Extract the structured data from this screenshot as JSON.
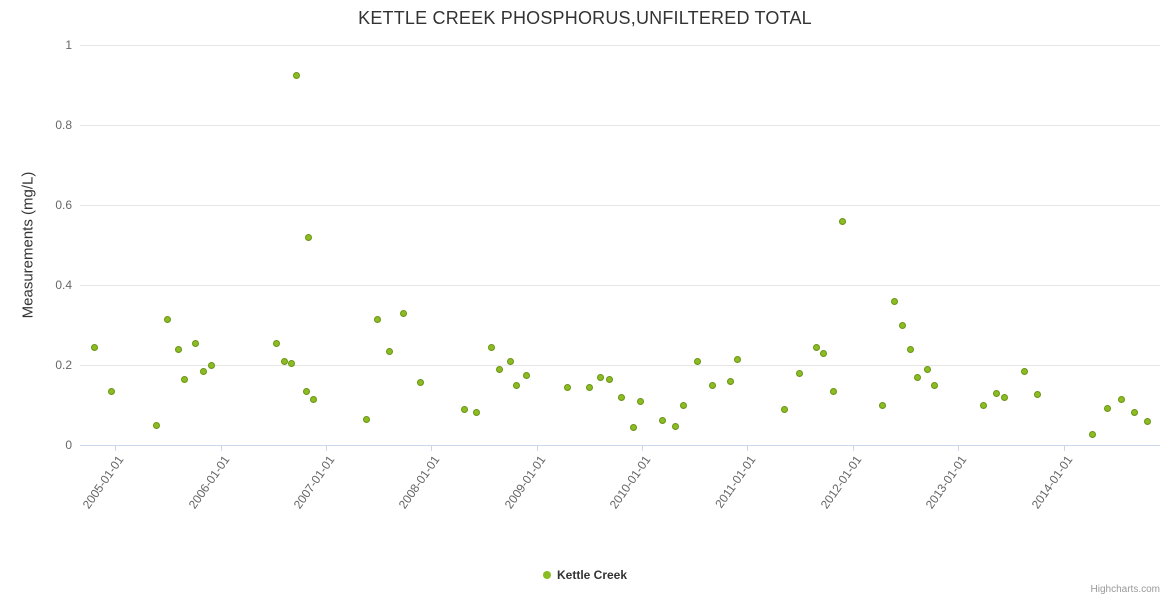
{
  "credits": "Highcharts.com",
  "legend": {
    "label": "Kettle Creek"
  },
  "colors": {
    "point_fill": "#8bbc21",
    "point_border": "#6a9417",
    "gridline": "#e6e6e6",
    "axis_line": "#ccd6eb",
    "tick_label": "#666666",
    "title": "#333333"
  },
  "chart_data": {
    "type": "scatter",
    "title": "KETTLE CREEK PHOSPHORUS,UNFILTERED TOTAL",
    "xlabel": "",
    "ylabel": "Measurements (mg/L)",
    "ylim": [
      0,
      1
    ],
    "yticks": [
      0,
      0.2,
      0.4,
      0.6,
      0.8,
      1
    ],
    "x_range": [
      "2004-09-01",
      "2014-12-01"
    ],
    "xticks": [
      "2005-01-01",
      "2006-01-01",
      "2007-01-01",
      "2008-01-01",
      "2009-01-01",
      "2010-01-01",
      "2011-01-01",
      "2012-01-01",
      "2013-01-01",
      "2014-01-01"
    ],
    "grid": "horizontal",
    "legend_position": "bottom-center",
    "series": [
      {
        "name": "Kettle Creek",
        "color": "#8bbc21",
        "border": "#6a9417",
        "points": [
          [
            "2004-10-22",
            0.245
          ],
          [
            "2004-12-20",
            0.135
          ],
          [
            "2005-05-25",
            0.05
          ],
          [
            "2005-07-01",
            0.315
          ],
          [
            "2005-08-07",
            0.24
          ],
          [
            "2005-08-29",
            0.163
          ],
          [
            "2005-10-08",
            0.255
          ],
          [
            "2005-11-03",
            0.185
          ],
          [
            "2005-12-01",
            0.2
          ],
          [
            "2006-07-15",
            0.255
          ],
          [
            "2006-08-10",
            0.21
          ],
          [
            "2006-09-05",
            0.205
          ],
          [
            "2006-09-22",
            0.925
          ],
          [
            "2006-10-26",
            0.135
          ],
          [
            "2006-11-02",
            0.52
          ],
          [
            "2006-11-20",
            0.115
          ],
          [
            "2007-05-23",
            0.063
          ],
          [
            "2007-06-29",
            0.315
          ],
          [
            "2007-08-10",
            0.233
          ],
          [
            "2007-09-28",
            0.33
          ],
          [
            "2007-11-26",
            0.156
          ],
          [
            "2008-04-26",
            0.088
          ],
          [
            "2008-06-06",
            0.081
          ],
          [
            "2008-07-29",
            0.243
          ],
          [
            "2008-08-25",
            0.19
          ],
          [
            "2008-10-01",
            0.21
          ],
          [
            "2008-10-24",
            0.148
          ],
          [
            "2008-11-28",
            0.173
          ],
          [
            "2009-04-16",
            0.145
          ],
          [
            "2009-07-04",
            0.143
          ],
          [
            "2009-08-11",
            0.168
          ],
          [
            "2009-09-09",
            0.165
          ],
          [
            "2009-10-20",
            0.12
          ],
          [
            "2009-12-01",
            0.045
          ],
          [
            "2009-12-28",
            0.11
          ],
          [
            "2010-03-14",
            0.062
          ],
          [
            "2010-04-27",
            0.046
          ],
          [
            "2010-05-25",
            0.098
          ],
          [
            "2010-07-12",
            0.21
          ],
          [
            "2010-09-02",
            0.15
          ],
          [
            "2010-11-04",
            0.16
          ],
          [
            "2010-11-28",
            0.213
          ],
          [
            "2011-05-10",
            0.088
          ],
          [
            "2011-07-01",
            0.18
          ],
          [
            "2011-08-29",
            0.243
          ],
          [
            "2011-09-23",
            0.23
          ],
          [
            "2011-10-27",
            0.133
          ],
          [
            "2011-11-28",
            0.56
          ],
          [
            "2012-04-12",
            0.098
          ],
          [
            "2012-05-26",
            0.36
          ],
          [
            "2012-06-23",
            0.298
          ],
          [
            "2012-07-20",
            0.24
          ],
          [
            "2012-08-14",
            0.168
          ],
          [
            "2012-09-17",
            0.19
          ],
          [
            "2012-10-11",
            0.148
          ],
          [
            "2013-03-30",
            0.1
          ],
          [
            "2013-05-14",
            0.128
          ],
          [
            "2013-06-10",
            0.12
          ],
          [
            "2013-08-19",
            0.185
          ],
          [
            "2013-10-01",
            0.127
          ],
          [
            "2014-04-12",
            0.027
          ],
          [
            "2014-06-03",
            0.092
          ],
          [
            "2014-07-21",
            0.115
          ],
          [
            "2014-09-05",
            0.082
          ],
          [
            "2014-10-19",
            0.06
          ]
        ]
      }
    ]
  }
}
